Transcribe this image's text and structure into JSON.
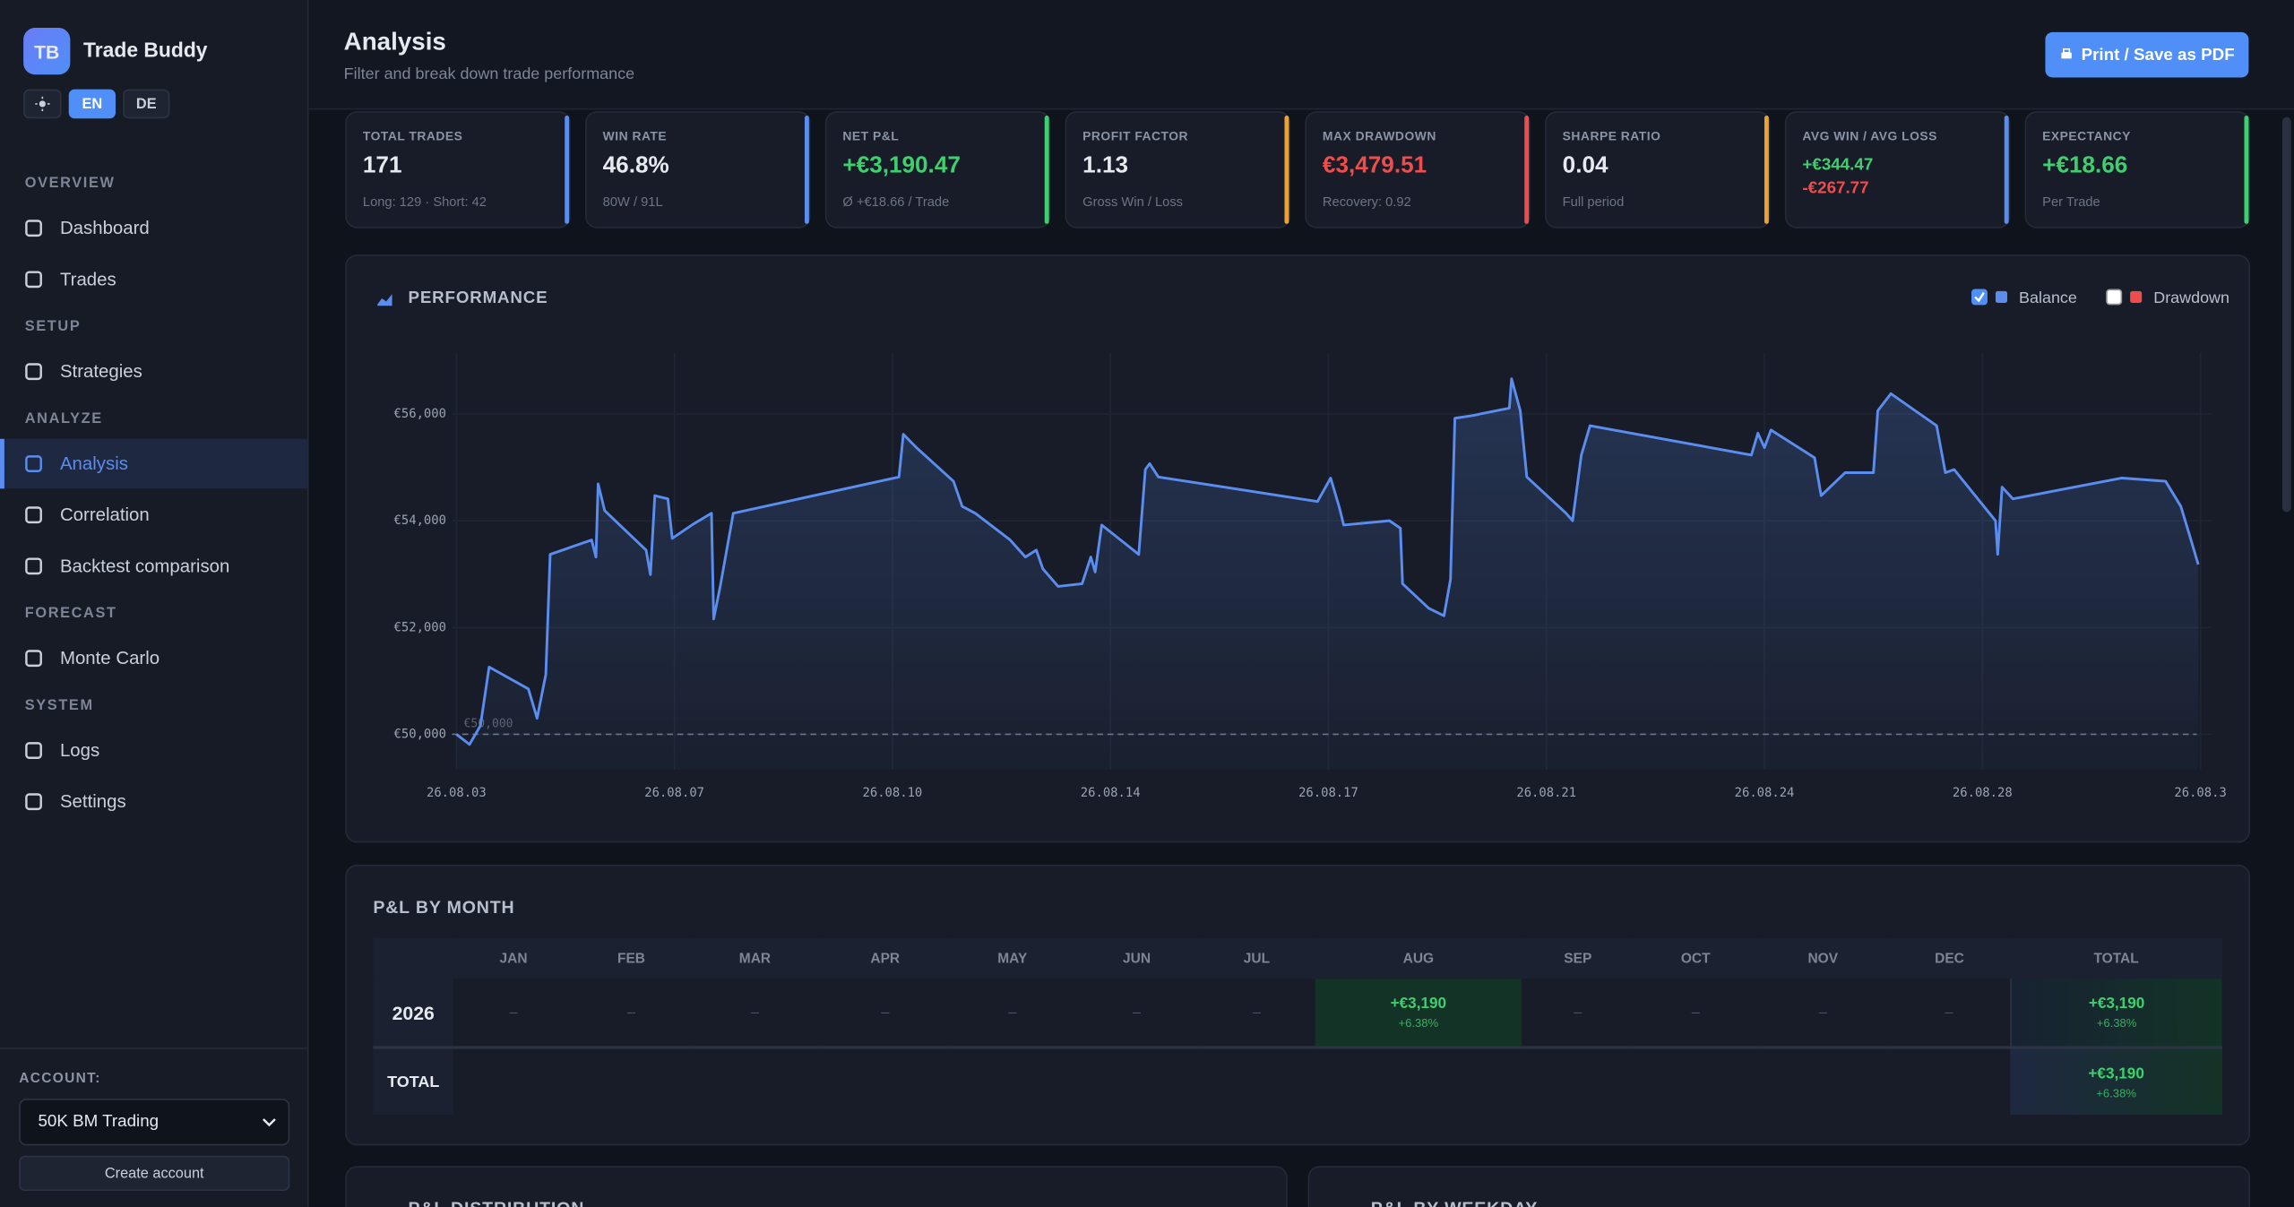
{
  "sidebar": {
    "logo": "TB",
    "app_name": "Trade Buddy",
    "languages": [
      "EN",
      "DE"
    ],
    "sections": [
      {
        "title": "OVERVIEW",
        "items": [
          "Dashboard",
          "Trades"
        ]
      },
      {
        "title": "SETUP",
        "items": [
          "Strategies"
        ]
      },
      {
        "title": "ANALYZE",
        "items": [
          "Analysis",
          "Correlation",
          "Backtest comparison"
        ]
      },
      {
        "title": "FORECAST",
        "items": [
          "Monte Carlo"
        ]
      },
      {
        "title": "SYSTEM",
        "items": [
          "Logs",
          "Settings"
        ]
      }
    ],
    "active": "Analysis",
    "account_label": "ACCOUNT:",
    "account": "50K BM Trading",
    "create_account": "Create account"
  },
  "header": {
    "title": "Analysis",
    "subtitle": "Filter and break down trade performance",
    "print_button": "Print / Save as PDF"
  },
  "kpis": [
    {
      "label": "TOTAL TRADES",
      "value": "171",
      "sub": "Long: 129 · Short: 42",
      "color": "#5b8def"
    },
    {
      "label": "WIN RATE",
      "value": "46.8%",
      "sub": "80W / 91L",
      "color": "#5b8def"
    },
    {
      "label": "NET P&L",
      "value": "+€3,190.47",
      "sub": "Ø +€18.66 / Trade",
      "color": "#3ecf6e",
      "value_color": "#3ecf6e"
    },
    {
      "label": "PROFIT FACTOR",
      "value": "1.13",
      "sub": "Gross Win / Loss",
      "color": "#f0a030"
    },
    {
      "label": "MAX DRAWDOWN",
      "value": "€3,479.51",
      "sub": "Recovery: 0.92",
      "color": "#ef4c4c",
      "value_color": "#ef4c4c"
    },
    {
      "label": "SHARPE RATIO",
      "value": "0.04",
      "sub": "Full period",
      "color": "#f0a030"
    },
    {
      "label": "AVG WIN / AVG LOSS",
      "win": "+€344.47",
      "loss": "-€267.77",
      "color": "#5b8def"
    },
    {
      "label": "EXPECTANCY",
      "value": "+€18.66",
      "sub": "Per Trade",
      "color": "#3ecf6e",
      "value_color": "#3ecf6e"
    }
  ],
  "chart_data": {
    "type": "line",
    "title": "PERFORMANCE",
    "series": [
      {
        "name": "Balance",
        "color": "#5b8def",
        "checked": true,
        "x": [
          0,
          0.06,
          0.11,
          0.15,
          0.33,
          0.37,
          0.41,
          0.43,
          0.62,
          0.64,
          0.65,
          0.68,
          0.87,
          0.89,
          0.91,
          0.97,
          0.99,
          1.08,
          1.17,
          1.18,
          1.21,
          1.27,
          2.03,
          2.05,
          2.11,
          2.28,
          2.32,
          2.38,
          2.54,
          2.61,
          2.66,
          2.69,
          2.76,
          2.87,
          2.91,
          2.93,
          2.96,
          3.13,
          3.16,
          3.18,
          3.22,
          3.95,
          4.01,
          4.05,
          4.07,
          4.28,
          4.33,
          4.34,
          4.46,
          4.53,
          4.56,
          4.58,
          4.66,
          4.83,
          4.84,
          4.88,
          4.91,
          5.09,
          5.12,
          5.16,
          5.2,
          5.94,
          5.97,
          6.0,
          6.03,
          6.23,
          6.26,
          6.37,
          6.5,
          6.52,
          6.58,
          6.79,
          6.83,
          6.87,
          7.06,
          7.07,
          7.09,
          7.14,
          7.64,
          7.84,
          7.91,
          7.95,
          7.99
        ],
        "values": [
          50000,
          49810,
          50160,
          51260,
          50850,
          50300,
          51120,
          53370,
          53640,
          53320,
          54690,
          54190,
          53450,
          52990,
          54470,
          54410,
          53670,
          53920,
          54140,
          52160,
          52770,
          54140,
          54820,
          55620,
          55370,
          54740,
          54270,
          54140,
          53640,
          53320,
          53450,
          53100,
          52770,
          52820,
          53320,
          53040,
          53920,
          53370,
          54960,
          55070,
          54820,
          54360,
          54800,
          54250,
          53920,
          54000,
          53860,
          52820,
          52360,
          52220,
          52900,
          55920,
          55970,
          56110,
          56660,
          56060,
          54820,
          54140,
          54000,
          55230,
          55780,
          55230,
          55640,
          55370,
          55700,
          55180,
          54470,
          54900,
          54900,
          56060,
          56380,
          55780,
          54900,
          54960,
          54000,
          53370,
          54630,
          54410,
          54800,
          54740,
          54270,
          53730,
          53180
        ]
      },
      {
        "name": "Drawdown",
        "color": "#ef4c4c",
        "checked": false
      }
    ],
    "baseline": {
      "value": 50000,
      "label": "€50,000"
    },
    "xlim": [
      -0.02,
      8.05
    ],
    "xticks": [
      {
        "value": 0,
        "label": "26.08.03"
      },
      {
        "value": 1,
        "label": "26.08.07"
      },
      {
        "value": 2,
        "label": "26.08.10"
      },
      {
        "value": 3,
        "label": "26.08.14"
      },
      {
        "value": 4,
        "label": "26.08.17"
      },
      {
        "value": 5,
        "label": "26.08.21"
      },
      {
        "value": 6,
        "label": "26.08.24"
      },
      {
        "value": 7,
        "label": "26.08.28"
      },
      {
        "value": 8,
        "label": "26.08.3"
      }
    ],
    "ylim": [
      49340,
      57150
    ],
    "yticks": [
      {
        "value": 50000,
        "label": "€50,000"
      },
      {
        "value": 52000,
        "label": "€52,000"
      },
      {
        "value": 54000,
        "label": "€54,000"
      },
      {
        "value": 56000,
        "label": "€56,000"
      }
    ],
    "grid": true
  },
  "monthly": {
    "title": "P&L BY MONTH",
    "headers": [
      "",
      "JAN",
      "FEB",
      "MAR",
      "APR",
      "MAY",
      "JUN",
      "JUL",
      "AUG",
      "SEP",
      "OCT",
      "NOV",
      "DEC",
      "TOTAL"
    ],
    "rows": [
      {
        "label": "2026",
        "cells": [
          [
            "–"
          ],
          [
            "–"
          ],
          [
            "–"
          ],
          [
            "–"
          ],
          [
            "–"
          ],
          [
            "–"
          ],
          [
            "–"
          ],
          [
            "+€3,190",
            "+6.38%"
          ],
          [
            "–"
          ],
          [
            "–"
          ],
          [
            "–"
          ],
          [
            "–"
          ],
          [
            "+€3,190",
            "+6.38%"
          ]
        ]
      },
      {
        "label": "TOTAL",
        "cells": [
          [],
          [],
          [],
          [],
          [],
          [],
          [],
          [],
          [],
          [],
          [],
          [],
          [
            "+€3,190",
            "+6.38%"
          ]
        ]
      }
    ]
  },
  "bottom_panels": [
    "P&L DISTRIBUTION",
    "P&L BY WEEKDAY"
  ]
}
